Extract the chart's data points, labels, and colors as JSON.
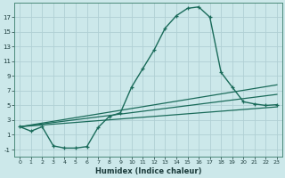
{
  "bg_color": "#cce8ea",
  "grid_color": "#b0d0d4",
  "line_color": "#1a6b5a",
  "xlabel": "Humidex (Indice chaleur)",
  "xlim": [
    -0.5,
    23.5
  ],
  "ylim": [
    -2.0,
    19.0
  ],
  "xticks": [
    0,
    1,
    2,
    3,
    4,
    5,
    6,
    7,
    8,
    9,
    10,
    11,
    12,
    13,
    14,
    15,
    16,
    17,
    18,
    19,
    20,
    21,
    22,
    23
  ],
  "yticks": [
    -1,
    1,
    3,
    5,
    7,
    9,
    11,
    13,
    15,
    17
  ],
  "curve1_x": [
    0,
    1,
    2,
    3,
    4,
    5,
    6,
    7,
    8,
    9,
    10,
    11,
    12,
    13,
    14,
    15,
    16,
    17,
    18,
    19,
    20,
    21,
    22,
    23
  ],
  "curve1_y": [
    2.1,
    1.5,
    2.1,
    -0.5,
    -0.8,
    -0.8,
    -0.6,
    2.0,
    3.5,
    4.0,
    7.5,
    10.0,
    12.5,
    15.5,
    17.2,
    18.2,
    18.4,
    17.0,
    9.5,
    7.5,
    5.5,
    5.2,
    5.0,
    5.1
  ],
  "line1_x": [
    0,
    23
  ],
  "line1_y": [
    2.1,
    7.8
  ],
  "line2_x": [
    0,
    23
  ],
  "line2_y": [
    2.1,
    6.5
  ],
  "line3_x": [
    0,
    23
  ],
  "line3_y": [
    2.1,
    4.8
  ]
}
